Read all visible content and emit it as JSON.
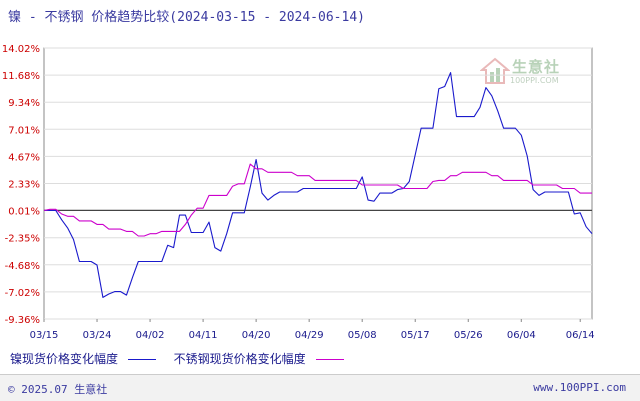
{
  "header": {
    "title": "镍 - 不锈钢 价格趋势比较(2024-03-15 - 2024-06-14)"
  },
  "legend": [
    {
      "label": "镍现货价格变化幅度",
      "color": "#1a1acc"
    },
    {
      "label": "不锈钢现货价格变化幅度",
      "color": "#cc00cc"
    }
  ],
  "watermark": {
    "text": "生意社",
    "sub": "100PPI.COM"
  },
  "footer": {
    "left": "© 2025.07 生意社",
    "right": "www.100PPI.com"
  },
  "chart_data": {
    "type": "line",
    "title": "镍 - 不锈钢 价格趋势比较(2024-03-15 - 2024-06-14)",
    "y_ticks": [
      "14.02%",
      "11.68%",
      "9.34%",
      "7.01%",
      "4.67%",
      "2.33%",
      "0.01%",
      "-2.35%",
      "-4.68%",
      "-7.02%",
      "-9.36%"
    ],
    "y_values": [
      14.02,
      11.68,
      9.34,
      7.01,
      4.67,
      2.33,
      0.01,
      -2.35,
      -4.68,
      -7.02,
      -9.36
    ],
    "ylim": [
      -9.36,
      14.02
    ],
    "x_ticks": [
      "03/15",
      "03/24",
      "04/02",
      "04/11",
      "04/20",
      "04/29",
      "05/08",
      "05/17",
      "05/26",
      "06/04",
      "06/14"
    ],
    "x_tick_days": [
      0,
      9,
      18,
      27,
      36,
      45,
      54,
      63,
      72,
      81,
      91
    ],
    "grid": "horizontal",
    "series": [
      {
        "name": "镍现货价格变化幅度",
        "color": "#1a1acc",
        "points": [
          [
            0,
            0
          ],
          [
            1,
            0
          ],
          [
            2,
            0
          ],
          [
            3,
            -0.8
          ],
          [
            4,
            -1.5
          ],
          [
            5,
            -2.5
          ],
          [
            6,
            -4.4
          ],
          [
            7,
            -4.4
          ],
          [
            8,
            -4.4
          ],
          [
            9,
            -4.7
          ],
          [
            10,
            -7.5
          ],
          [
            11,
            -7.2
          ],
          [
            12,
            -7.0
          ],
          [
            13,
            -7.0
          ],
          [
            14,
            -7.3
          ],
          [
            15,
            -5.8
          ],
          [
            16,
            -4.4
          ],
          [
            17,
            -4.4
          ],
          [
            18,
            -4.4
          ],
          [
            19,
            -4.4
          ],
          [
            20,
            -4.4
          ],
          [
            21,
            -3.0
          ],
          [
            22,
            -3.2
          ],
          [
            23,
            -0.4
          ],
          [
            24,
            -0.4
          ],
          [
            25,
            -1.9
          ],
          [
            26,
            -1.9
          ],
          [
            27,
            -1.9
          ],
          [
            28,
            -1.0
          ],
          [
            29,
            -3.2
          ],
          [
            30,
            -3.5
          ],
          [
            31,
            -2.0
          ],
          [
            32,
            -0.2
          ],
          [
            33,
            -0.2
          ],
          [
            34,
            -0.2
          ],
          [
            35,
            2.0
          ],
          [
            36,
            4.4
          ],
          [
            37,
            1.5
          ],
          [
            38,
            0.9
          ],
          [
            39,
            1.3
          ],
          [
            40,
            1.6
          ],
          [
            41,
            1.6
          ],
          [
            42,
            1.6
          ],
          [
            43,
            1.6
          ],
          [
            44,
            1.9
          ],
          [
            45,
            1.9
          ],
          [
            46,
            1.9
          ],
          [
            47,
            1.9
          ],
          [
            48,
            1.9
          ],
          [
            49,
            1.9
          ],
          [
            50,
            1.9
          ],
          [
            51,
            1.9
          ],
          [
            52,
            1.9
          ],
          [
            53,
            1.9
          ],
          [
            54,
            2.9
          ],
          [
            55,
            0.9
          ],
          [
            56,
            0.8
          ],
          [
            57,
            1.5
          ],
          [
            58,
            1.5
          ],
          [
            59,
            1.5
          ],
          [
            60,
            1.8
          ],
          [
            61,
            1.9
          ],
          [
            62,
            2.5
          ],
          [
            63,
            4.8
          ],
          [
            64,
            7.1
          ],
          [
            65,
            7.1
          ],
          [
            66,
            7.1
          ],
          [
            67,
            10.5
          ],
          [
            68,
            10.7
          ],
          [
            69,
            11.9
          ],
          [
            70,
            8.1
          ],
          [
            71,
            8.1
          ],
          [
            72,
            8.1
          ],
          [
            73,
            8.1
          ],
          [
            74,
            8.9
          ],
          [
            75,
            10.6
          ],
          [
            76,
            9.9
          ],
          [
            77,
            8.6
          ],
          [
            78,
            7.1
          ],
          [
            79,
            7.1
          ],
          [
            80,
            7.1
          ],
          [
            81,
            6.5
          ],
          [
            82,
            4.7
          ],
          [
            83,
            1.8
          ],
          [
            84,
            1.3
          ],
          [
            85,
            1.6
          ],
          [
            86,
            1.6
          ],
          [
            87,
            1.6
          ],
          [
            88,
            1.6
          ],
          [
            89,
            1.6
          ],
          [
            90,
            -0.3
          ],
          [
            91,
            -0.2
          ],
          [
            92,
            -1.4
          ],
          [
            93,
            -2.0
          ]
        ]
      },
      {
        "name": "不锈钢现货价格变化幅度",
        "color": "#cc00cc",
        "points": [
          [
            0,
            0
          ],
          [
            1,
            0.1
          ],
          [
            2,
            0.1
          ],
          [
            3,
            -0.3
          ],
          [
            4,
            -0.5
          ],
          [
            5,
            -0.5
          ],
          [
            6,
            -0.9
          ],
          [
            7,
            -0.9
          ],
          [
            8,
            -0.9
          ],
          [
            9,
            -1.2
          ],
          [
            10,
            -1.2
          ],
          [
            11,
            -1.6
          ],
          [
            12,
            -1.6
          ],
          [
            13,
            -1.6
          ],
          [
            14,
            -1.8
          ],
          [
            15,
            -1.8
          ],
          [
            16,
            -2.2
          ],
          [
            17,
            -2.2
          ],
          [
            18,
            -2.0
          ],
          [
            19,
            -2.0
          ],
          [
            20,
            -1.8
          ],
          [
            21,
            -1.8
          ],
          [
            22,
            -1.8
          ],
          [
            23,
            -1.8
          ],
          [
            24,
            -1.2
          ],
          [
            25,
            -0.4
          ],
          [
            26,
            0.2
          ],
          [
            27,
            0.2
          ],
          [
            28,
            1.3
          ],
          [
            29,
            1.3
          ],
          [
            30,
            1.3
          ],
          [
            31,
            1.3
          ],
          [
            32,
            2.1
          ],
          [
            33,
            2.3
          ],
          [
            34,
            2.3
          ],
          [
            35,
            4.0
          ],
          [
            36,
            3.6
          ],
          [
            37,
            3.6
          ],
          [
            38,
            3.3
          ],
          [
            39,
            3.3
          ],
          [
            40,
            3.3
          ],
          [
            41,
            3.3
          ],
          [
            42,
            3.3
          ],
          [
            43,
            3.0
          ],
          [
            44,
            3.0
          ],
          [
            45,
            3.0
          ],
          [
            46,
            2.6
          ],
          [
            47,
            2.6
          ],
          [
            48,
            2.6
          ],
          [
            49,
            2.6
          ],
          [
            50,
            2.6
          ],
          [
            51,
            2.6
          ],
          [
            52,
            2.6
          ],
          [
            53,
            2.6
          ],
          [
            54,
            2.2
          ],
          [
            55,
            2.2
          ],
          [
            56,
            2.2
          ],
          [
            57,
            2.2
          ],
          [
            58,
            2.2
          ],
          [
            59,
            2.2
          ],
          [
            60,
            2.2
          ],
          [
            61,
            1.9
          ],
          [
            62,
            1.9
          ],
          [
            63,
            1.9
          ],
          [
            64,
            1.9
          ],
          [
            65,
            1.9
          ],
          [
            66,
            2.5
          ],
          [
            67,
            2.6
          ],
          [
            68,
            2.6
          ],
          [
            69,
            3.0
          ],
          [
            70,
            3.0
          ],
          [
            71,
            3.3
          ],
          [
            72,
            3.3
          ],
          [
            73,
            3.3
          ],
          [
            74,
            3.3
          ],
          [
            75,
            3.3
          ],
          [
            76,
            3.0
          ],
          [
            77,
            3.0
          ],
          [
            78,
            2.6
          ],
          [
            79,
            2.6
          ],
          [
            80,
            2.6
          ],
          [
            81,
            2.6
          ],
          [
            82,
            2.6
          ],
          [
            83,
            2.2
          ],
          [
            84,
            2.2
          ],
          [
            85,
            2.2
          ],
          [
            86,
            2.2
          ],
          [
            87,
            2.2
          ],
          [
            88,
            1.9
          ],
          [
            89,
            1.9
          ],
          [
            90,
            1.9
          ],
          [
            91,
            1.5
          ],
          [
            92,
            1.5
          ],
          [
            93,
            1.5
          ]
        ]
      }
    ]
  }
}
